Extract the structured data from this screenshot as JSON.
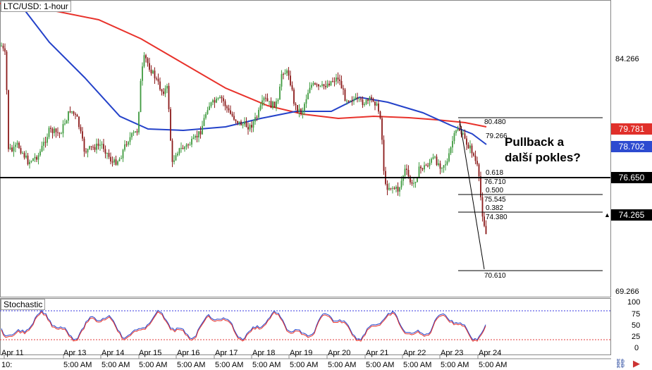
{
  "symbol_label": "LTC/USD: 1-hour",
  "stochastic_label": "Stochastic",
  "annotation": {
    "line1": "Pullback a",
    "line2": "další pokles?"
  },
  "colors": {
    "up_candle": "#3f9b3f",
    "down_candle": "#8b1a1a",
    "ma_red": "#e8322b",
    "ma_blue": "#2442c9",
    "support": "#000000",
    "tag_red": "#e0302a",
    "tag_blue": "#2d4bd0",
    "tag_black": "#000000"
  },
  "price_axis": {
    "labels": [
      "84.266",
      "69.266"
    ]
  },
  "price_tags": {
    "red_ma": "79.781",
    "blue_ma": "78.702",
    "support": "76.650",
    "current": "74.265",
    "current_marker": "▲"
  },
  "fib_labels": {
    "high": "80.480",
    "high_sub": "79.266",
    "r618": "0.618",
    "r618_price": "76.710",
    "r500": "0.500",
    "r500_price": "75.545",
    "r382": "0.382",
    "r382_price": "74.380",
    "low": "70.610"
  },
  "stoch_axis": [
    "100",
    "75",
    "50",
    "25",
    "0"
  ],
  "x_dates": [
    "Apr 11",
    "Apr 13",
    "Apr 14",
    "Apr 15",
    "Apr 16",
    "Apr 17",
    "Apr 18",
    "Apr 19",
    "Apr 20",
    "Apr 21",
    "Apr 22",
    "Apr 23",
    "Apr 24"
  ],
  "x_times": [
    "10:",
    "5:00 AM",
    "5:00 AM",
    "5:00 AM",
    "5:00 AM",
    "5:00 AM",
    "5:00 AM",
    "5:00 AM",
    "5:00 AM",
    "5:00 AM",
    "5:00 AM",
    "5:00 AM",
    "5:00 AM"
  ],
  "icons": [
    "link-icon",
    "play-icon"
  ]
}
